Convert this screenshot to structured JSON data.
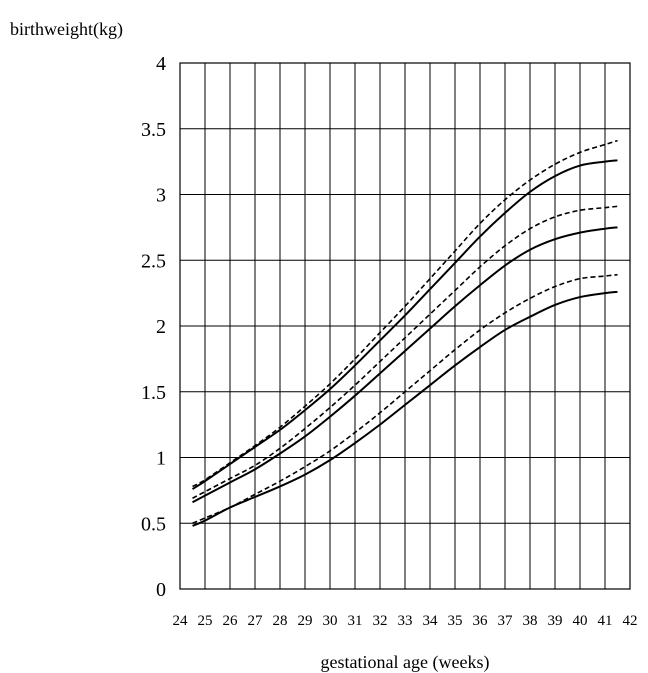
{
  "chart_data": {
    "type": "line",
    "title": "",
    "xlabel": "gestational age (weeks)",
    "ylabel": "birthweight(kg)",
    "xlim": [
      24,
      42
    ],
    "ylim": [
      0,
      4
    ],
    "grid": true,
    "x_ticks": [
      "24",
      "25",
      "26",
      "27",
      "28",
      "29",
      "30",
      "31",
      "32",
      "33",
      "34",
      "35",
      "36",
      "37",
      "38",
      "39",
      "40",
      "41",
      "42"
    ],
    "y_ticks": [
      "0",
      "0.5",
      "1",
      "1.5",
      "2",
      "2.5",
      "3",
      "3.5",
      "4"
    ],
    "x": [
      24.5,
      25,
      26,
      27,
      28,
      29,
      30,
      31,
      32,
      33,
      34,
      35,
      36,
      37,
      38,
      39,
      40,
      41,
      41.5
    ],
    "series": [
      {
        "style": "dashed",
        "values": [
          0.78,
          0.83,
          0.96,
          1.09,
          1.23,
          1.39,
          1.56,
          1.75,
          1.95,
          2.15,
          2.36,
          2.57,
          2.78,
          2.96,
          3.11,
          3.23,
          3.32,
          3.38,
          3.41
        ]
      },
      {
        "style": "solid",
        "values": [
          0.76,
          0.82,
          0.95,
          1.08,
          1.21,
          1.36,
          1.52,
          1.7,
          1.89,
          2.08,
          2.28,
          2.48,
          2.68,
          2.86,
          3.02,
          3.14,
          3.22,
          3.25,
          3.26
        ]
      },
      {
        "style": "dashed",
        "values": [
          0.69,
          0.74,
          0.84,
          0.94,
          1.07,
          1.22,
          1.38,
          1.55,
          1.73,
          1.91,
          2.09,
          2.27,
          2.45,
          2.61,
          2.74,
          2.83,
          2.88,
          2.9,
          2.91
        ]
      },
      {
        "style": "solid",
        "values": [
          0.66,
          0.71,
          0.81,
          0.91,
          1.03,
          1.16,
          1.31,
          1.47,
          1.64,
          1.81,
          1.98,
          2.15,
          2.31,
          2.46,
          2.58,
          2.66,
          2.71,
          2.74,
          2.75
        ]
      },
      {
        "style": "dashed",
        "values": [
          0.5,
          0.54,
          0.62,
          0.72,
          0.82,
          0.93,
          1.05,
          1.19,
          1.34,
          1.5,
          1.66,
          1.82,
          1.97,
          2.1,
          2.21,
          2.3,
          2.36,
          2.38,
          2.39
        ]
      },
      {
        "style": "solid",
        "values": [
          0.48,
          0.52,
          0.62,
          0.7,
          0.78,
          0.87,
          0.98,
          1.11,
          1.25,
          1.4,
          1.55,
          1.7,
          1.84,
          1.97,
          2.07,
          2.16,
          2.22,
          2.25,
          2.26
        ]
      }
    ]
  }
}
